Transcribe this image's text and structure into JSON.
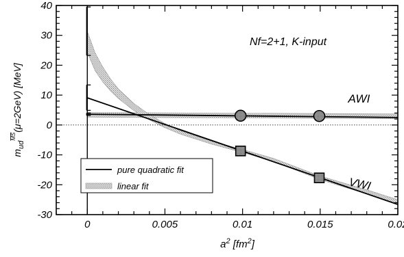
{
  "chart_data": {
    "type": "scatter",
    "title": "",
    "xlabel_main": "a",
    "xlabel_sup": "2",
    "xlabel_unit_pre": " [fm",
    "xlabel_unit_sup": "2",
    "xlabel_unit_post": "]",
    "ylabel_main": "m",
    "ylabel_sub": "ud",
    "ylabel_sup": "MS",
    "ylabel_rest": "(μ=2GeV) [MeV]",
    "xlim": [
      -0.002,
      0.02
    ],
    "ylim": [
      -30,
      40
    ],
    "x_ticks": [
      0,
      0.005,
      0.01,
      0.015,
      0.02
    ],
    "x_tick_labels": [
      "0",
      "0.005",
      "0.01",
      "0.015",
      "0.02"
    ],
    "y_ticks": [
      -30,
      -20,
      -10,
      0,
      10,
      20,
      30,
      40
    ],
    "y_tick_labels": [
      "-30",
      "-20",
      "-10",
      "0",
      "10",
      "20",
      "30",
      "40"
    ],
    "annotation": "Nf=2+1, K-input",
    "series_labels": [
      {
        "text": "AWI",
        "at": [
          0.0175,
          7.5
        ]
      },
      {
        "text": "VWI",
        "at": [
          0.0175,
          -21
        ]
      }
    ],
    "series": [
      {
        "name": "AWI",
        "marker": "circle",
        "x": [
          0.00987,
          0.01494
        ],
        "y": [
          3.1,
          3.0
        ]
      },
      {
        "name": "VWI",
        "marker": "square",
        "x": [
          0.00987,
          0.01494
        ],
        "y": [
          -8.7,
          -17.7
        ]
      }
    ],
    "extrapolations": [
      {
        "series": "AWI",
        "value": 3.6,
        "err": [
          3.2,
          4.0
        ],
        "fit": "linear"
      },
      {
        "series": "VWI",
        "value": 9.1,
        "err": [
          4.9,
          13.4
        ],
        "fit": "pure quadratic"
      },
      {
        "series": "VWI",
        "value": 27.8,
        "err": [
          23.3,
          39.5
        ],
        "fit": "linear"
      }
    ],
    "fits": [
      {
        "name": "pure quadratic fit",
        "style": "solid",
        "curves": [
          {
            "label": "AWI",
            "x": [
              0,
              0.02
            ],
            "y": [
              3.6,
              2.5
            ]
          },
          {
            "label": "VWI",
            "x": [
              0,
              0.02
            ],
            "y": [
              9.1,
              -26.6
            ]
          }
        ]
      },
      {
        "name": "linear fit",
        "style": "band",
        "curves": [
          {
            "label": "AWI",
            "x": [
              0,
              0.02
            ],
            "y": [
              3.4,
              2.9
            ],
            "halfwidth": 0.8
          },
          {
            "label": "VWI",
            "x": [
              0,
              0.0005,
              0.001,
              0.0015,
              0.002,
              0.003,
              0.004,
              0.005,
              0.006,
              0.008,
              0.01,
              0.012,
              0.015,
              0.018,
              0.02
            ],
            "y": [
              27.8,
              21.2,
              16.9,
              13.4,
              10.5,
              6.0,
              2.6,
              -0.2,
              -2.5,
              -5.9,
              -8.7,
              -11.7,
              -17.7,
              -22.4,
              -25.8
            ],
            "halfwidth": [
              3.5,
              3.0,
              2.5,
              2.0,
              1.6,
              1.2,
              0.9,
              0.7,
              0.6,
              0.5,
              0.5,
              0.5,
              0.6,
              0.7,
              0.8
            ]
          }
        ]
      }
    ],
    "legend": {
      "position": "bottom-left",
      "entries": [
        {
          "label": "pure quadratic fit",
          "style": "solid"
        },
        {
          "label": "linear fit",
          "style": "band"
        }
      ]
    },
    "grid": false,
    "colors": {
      "axis": "#000000",
      "band": "#b0b0b0",
      "marker": "#777777"
    }
  }
}
